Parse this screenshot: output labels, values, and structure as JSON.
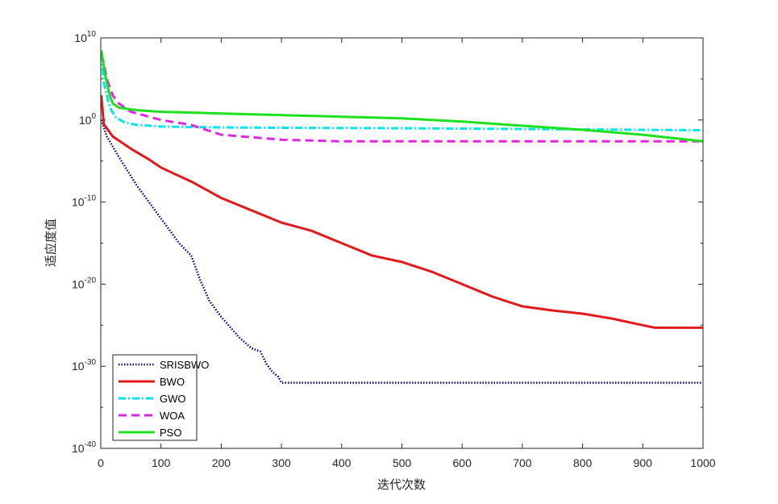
{
  "chart_data": {
    "type": "line",
    "title": "",
    "xlabel": "迭代次数",
    "ylabel": "适应度值",
    "xlim": [
      0,
      1000
    ],
    "ylim_log10": [
      -40,
      10
    ],
    "y_scale": "log",
    "x_ticks": [
      "0",
      "100",
      "200",
      "300",
      "400",
      "500",
      "600",
      "700",
      "800",
      "900",
      "1000"
    ],
    "y_ticks": [
      {
        "base": "10",
        "exp": "10"
      },
      {
        "base": "10",
        "exp": "0"
      },
      {
        "base": "10",
        "exp": "-10"
      },
      {
        "base": "10",
        "exp": "-20"
      },
      {
        "base": "10",
        "exp": "-30"
      },
      {
        "base": "10",
        "exp": "-40"
      }
    ],
    "legend_position": "bottom-left",
    "series": [
      {
        "name": "SRISBWO",
        "color": "#00008B",
        "style": "dotted",
        "x": [
          1,
          10,
          30,
          60,
          100,
          130,
          150,
          165,
          180,
          200,
          230,
          250,
          265,
          275,
          285,
          295,
          300,
          1000
        ],
        "log10_y": [
          0,
          -2,
          -4.5,
          -8,
          -12,
          -15,
          -16.5,
          -19.5,
          -22,
          -24,
          -26.5,
          -27.8,
          -28.2,
          -29.7,
          -30.7,
          -31.3,
          -32,
          -32
        ]
      },
      {
        "name": "BWO",
        "color": "#E31A1C",
        "style": "solid",
        "x": [
          1,
          5,
          20,
          50,
          80,
          100,
          150,
          200,
          250,
          300,
          350,
          400,
          450,
          500,
          550,
          600,
          650,
          700,
          750,
          800,
          850,
          900,
          920,
          1000
        ],
        "log10_y": [
          3,
          -0.5,
          -2,
          -3.5,
          -4.8,
          -5.8,
          -7.5,
          -9.5,
          -11,
          -12.5,
          -13.5,
          -15,
          -16.5,
          -17.3,
          -18.5,
          -20,
          -21.5,
          -22.7,
          -23.2,
          -23.6,
          -24.2,
          -25,
          -25.3,
          -25.3
        ]
      },
      {
        "name": "GWO",
        "color": "#00E5EE",
        "style": "dashdot",
        "x": [
          1,
          5,
          10,
          15,
          25,
          40,
          60,
          100,
          200,
          300,
          500,
          700,
          1000
        ],
        "log10_y": [
          8,
          4.5,
          3,
          1.5,
          0.3,
          -0.3,
          -0.6,
          -0.8,
          -0.9,
          -0.95,
          -1,
          -1.1,
          -1.25
        ]
      },
      {
        "name": "WOA",
        "color": "#E026E0",
        "style": "dashed",
        "x": [
          1,
          5,
          10,
          20,
          30,
          50,
          100,
          150,
          200,
          300,
          400,
          500,
          700,
          1000
        ],
        "log10_y": [
          8,
          7,
          5,
          3,
          2,
          1,
          0,
          -0.6,
          -1.8,
          -2.4,
          -2.6,
          -2.6,
          -2.6,
          -2.6
        ]
      },
      {
        "name": "PSO",
        "color": "#1EE11E",
        "style": "solid",
        "x": [
          1,
          5,
          10,
          15,
          20,
          30,
          60,
          100,
          200,
          300,
          400,
          500,
          600,
          700,
          800,
          900,
          1000
        ],
        "log10_y": [
          8.5,
          6.5,
          4.5,
          3,
          2,
          1.5,
          1.2,
          1,
          0.8,
          0.6,
          0.4,
          0.2,
          -0.2,
          -0.7,
          -1.2,
          -1.8,
          -2.6
        ]
      }
    ]
  }
}
